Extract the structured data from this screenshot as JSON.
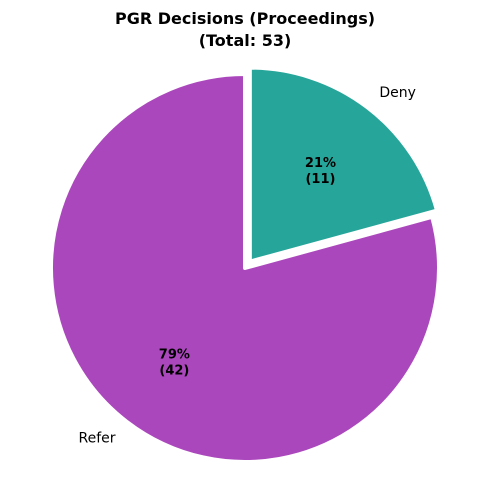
{
  "chart_data": {
    "type": "pie",
    "title": "PGR Decisions (Proceedings)",
    "subtitle": "(Total: 53)",
    "start_angle_deg": 90,
    "direction": "clockwise",
    "slices": [
      {
        "label": "Deny",
        "value": 11,
        "percent_label": "21%",
        "count_label": "(11)",
        "color": "#26a69a",
        "explode": true
      },
      {
        "label": "Refer",
        "value": 42,
        "percent_label": "79%",
        "count_label": "(42)",
        "color": "#ab47bc",
        "explode": false
      }
    ]
  }
}
